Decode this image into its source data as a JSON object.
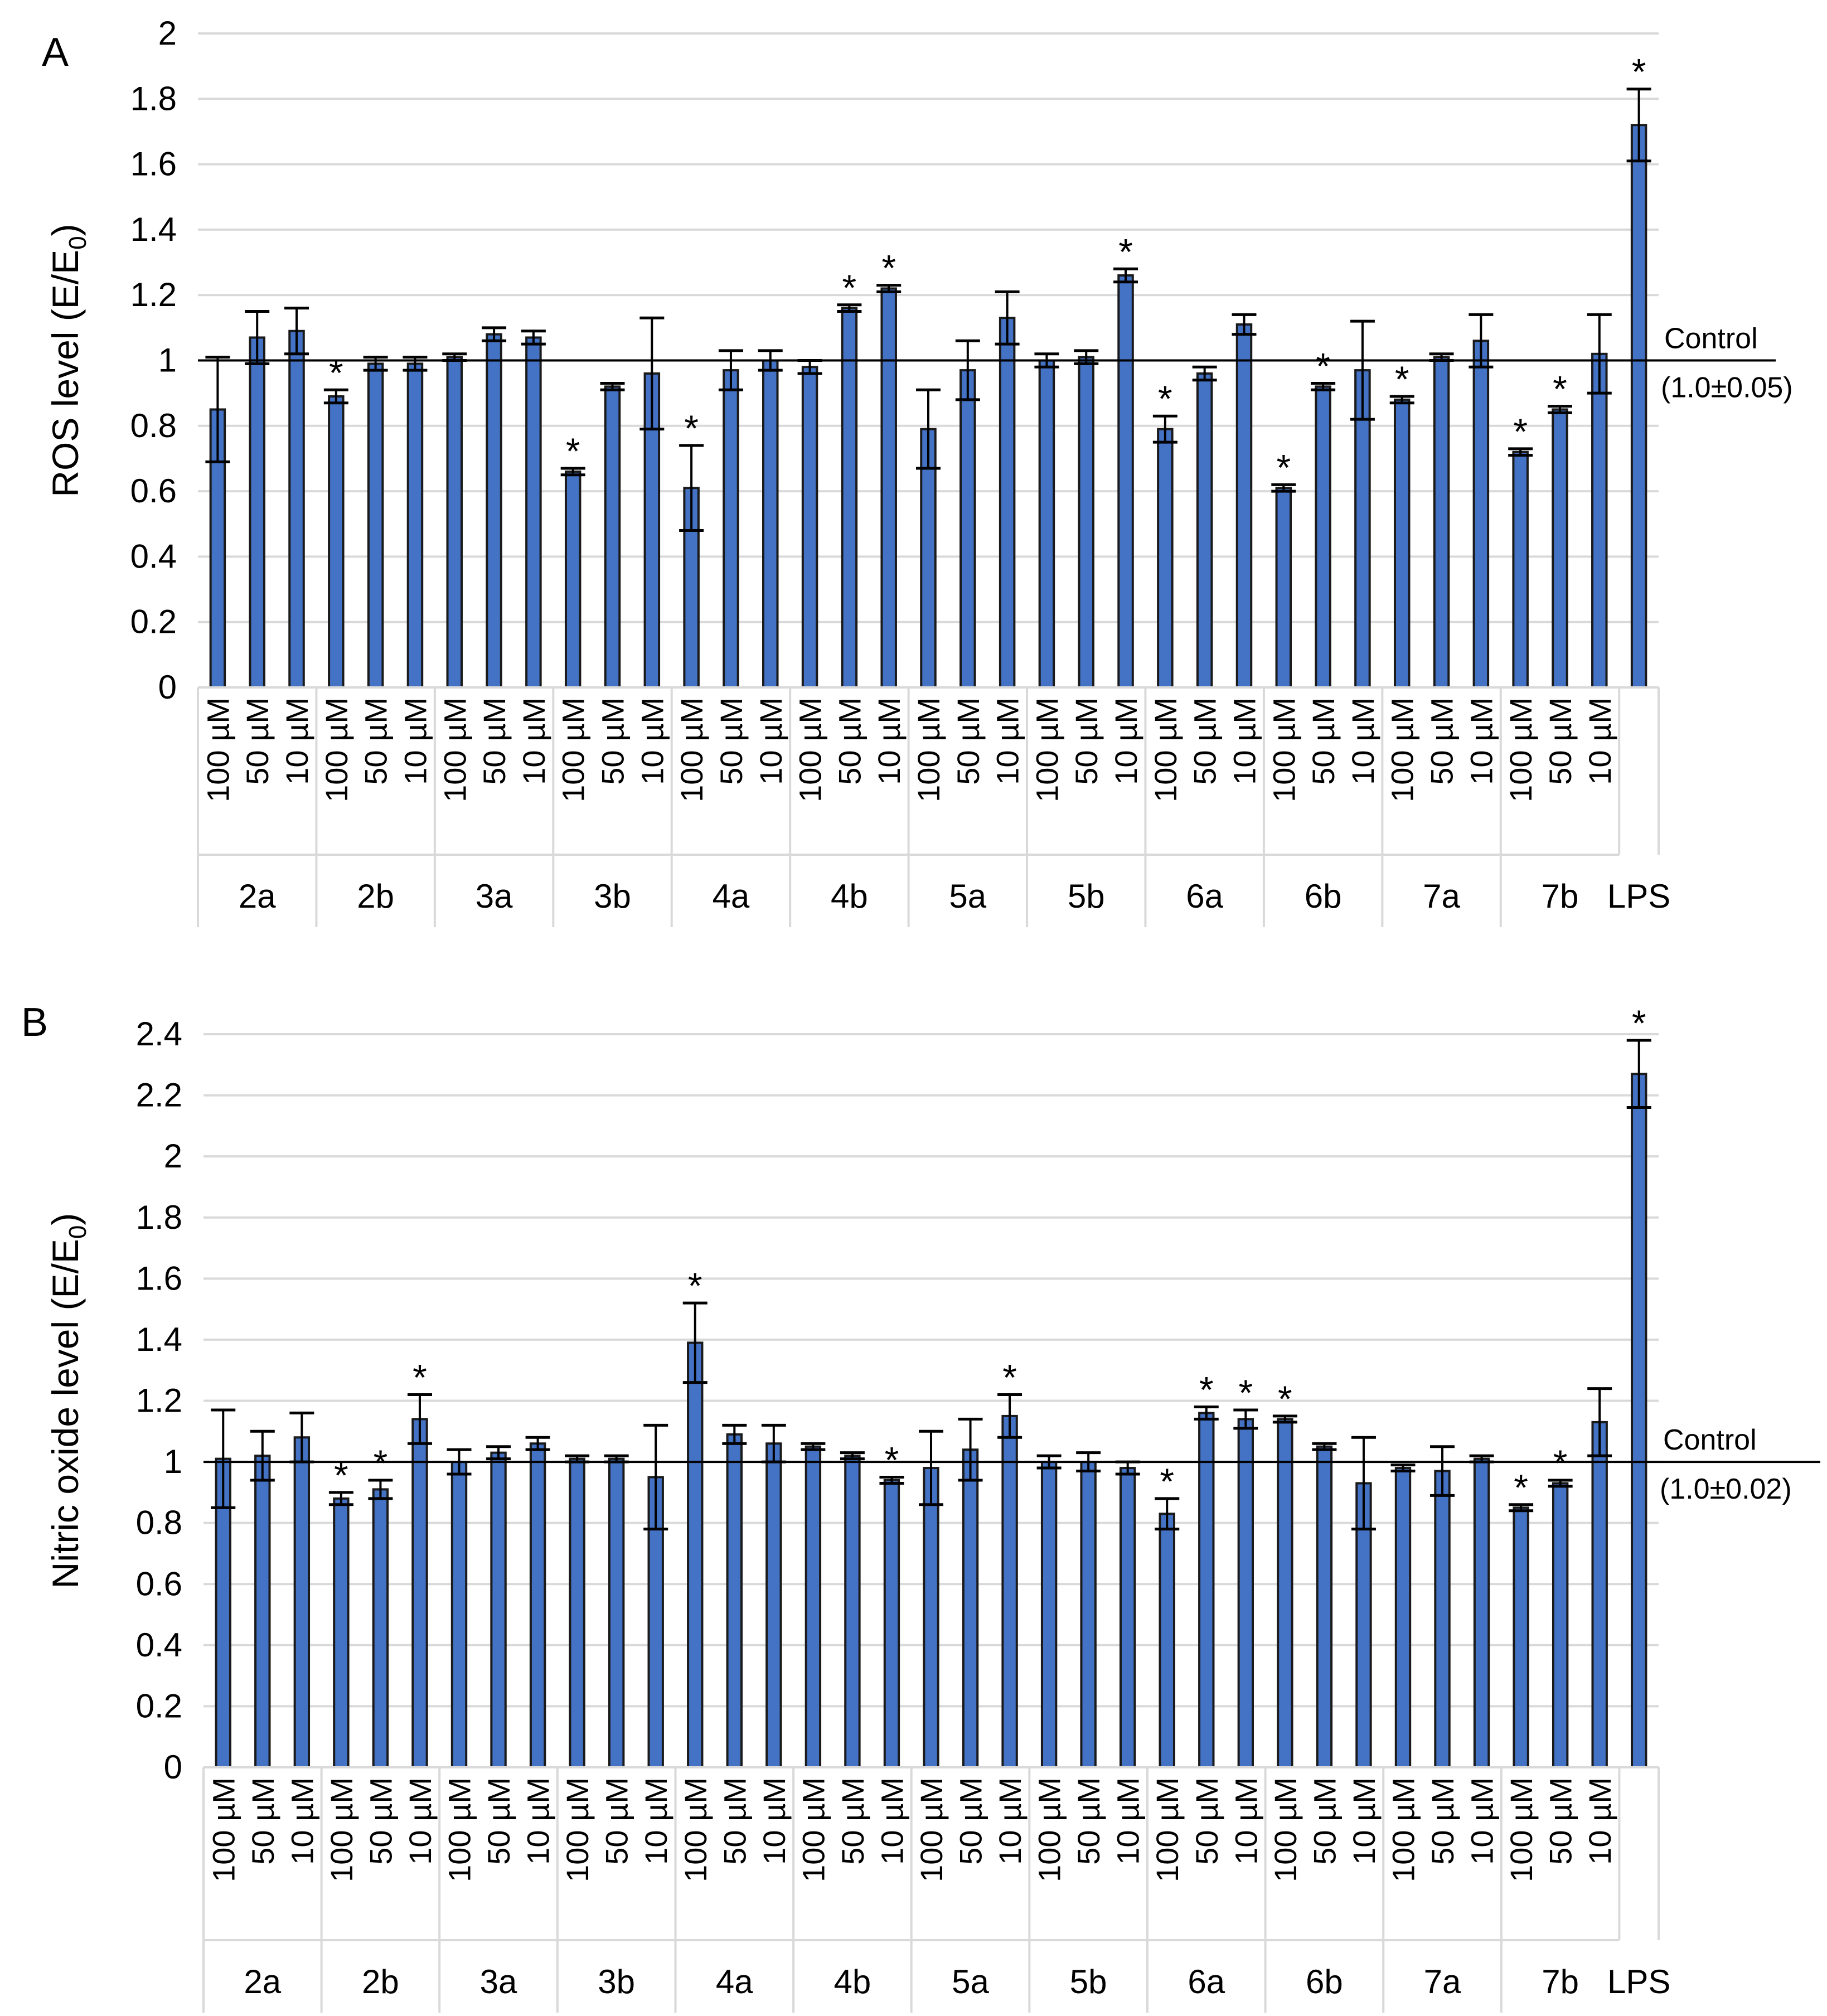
{
  "chart_data": [
    {
      "type": "bar",
      "panel_label": "A",
      "ylabel": "ROS level (E/E",
      "ylabel_sub": "0",
      "ylabel_end": ")",
      "ylim": [
        0,
        2
      ],
      "yticks": [
        0,
        0.2,
        0.4,
        0.6,
        0.8,
        1,
        1.2,
        1.4,
        1.6,
        1.8,
        2
      ],
      "ytick_labels": [
        "0",
        "0.2",
        "0.4",
        "0.6",
        "0.8",
        "1",
        "1.2",
        "1.4",
        "1.6",
        "1.8",
        "2"
      ],
      "groups": [
        "2a",
        "2b",
        "3a",
        "3b",
        "4a",
        "4b",
        "5a",
        "5b",
        "6a",
        "6b",
        "7a",
        "7b",
        "LPS"
      ],
      "concentrations": [
        "100 µM",
        "50 µM",
        "10 µM"
      ],
      "values": [
        0.85,
        1.07,
        1.09,
        0.89,
        0.99,
        0.99,
        1.01,
        1.08,
        1.07,
        0.66,
        0.92,
        0.96,
        0.61,
        0.97,
        1.0,
        0.98,
        1.16,
        1.22,
        0.79,
        0.97,
        1.13,
        1.0,
        1.01,
        1.26,
        0.79,
        0.96,
        1.11,
        0.61,
        0.92,
        0.97,
        0.88,
        1.01,
        1.06,
        0.72,
        0.85,
        1.02,
        1.72
      ],
      "errors": [
        0.16,
        0.08,
        0.07,
        0.02,
        0.02,
        0.02,
        0.01,
        0.02,
        0.02,
        0.01,
        0.01,
        0.17,
        0.13,
        0.06,
        0.03,
        0.02,
        0.01,
        0.01,
        0.12,
        0.09,
        0.08,
        0.02,
        0.02,
        0.02,
        0.04,
        0.02,
        0.03,
        0.01,
        0.01,
        0.15,
        0.01,
        0.01,
        0.08,
        0.01,
        0.01,
        0.12,
        0.11
      ],
      "significant": [
        false,
        false,
        false,
        true,
        false,
        false,
        false,
        false,
        false,
        true,
        false,
        false,
        true,
        false,
        false,
        false,
        true,
        true,
        false,
        false,
        false,
        false,
        false,
        true,
        true,
        false,
        false,
        true,
        true,
        false,
        true,
        false,
        false,
        true,
        true,
        false,
        true
      ],
      "significance_marker": "*",
      "control_line": {
        "value": 1.0,
        "label": "Control",
        "sublabel": "(1.0±0.05)"
      },
      "grid": true,
      "bar_color": "#4472c4"
    },
    {
      "type": "bar",
      "panel_label": "B",
      "ylabel": "Nitric oxide level (E/E",
      "ylabel_sub": "0",
      "ylabel_end": ")",
      "ylim": [
        0,
        2.4
      ],
      "yticks": [
        0,
        0.2,
        0.4,
        0.6,
        0.8,
        1,
        1.2,
        1.4,
        1.6,
        1.8,
        2,
        2.2,
        2.4
      ],
      "ytick_labels": [
        "0",
        "0.2",
        "0.4",
        "0.6",
        "0.8",
        "1",
        "1.2",
        "1.4",
        "1.6",
        "1.8",
        "2",
        "2.2",
        "2.4"
      ],
      "groups": [
        "2a",
        "2b",
        "3a",
        "3b",
        "4a",
        "4b",
        "5a",
        "5b",
        "6a",
        "6b",
        "7a",
        "7b",
        "LPS"
      ],
      "concentrations": [
        "100 µM",
        "50 µM",
        "10 µM"
      ],
      "values": [
        1.01,
        1.02,
        1.08,
        0.88,
        0.91,
        1.14,
        1.0,
        1.03,
        1.06,
        1.01,
        1.01,
        0.95,
        1.39,
        1.09,
        1.06,
        1.05,
        1.02,
        0.94,
        0.98,
        1.04,
        1.15,
        1.0,
        1.0,
        0.98,
        0.83,
        1.16,
        1.14,
        1.14,
        1.05,
        0.93,
        0.98,
        0.97,
        1.01,
        0.85,
        0.93,
        1.13,
        2.27
      ],
      "errors": [
        0.16,
        0.08,
        0.08,
        0.02,
        0.03,
        0.08,
        0.04,
        0.02,
        0.02,
        0.01,
        0.01,
        0.17,
        0.13,
        0.03,
        0.06,
        0.01,
        0.01,
        0.01,
        0.12,
        0.1,
        0.07,
        0.02,
        0.03,
        0.02,
        0.05,
        0.02,
        0.03,
        0.01,
        0.01,
        0.15,
        0.01,
        0.08,
        0.01,
        0.01,
        0.01,
        0.11,
        0.11
      ],
      "significant": [
        false,
        false,
        false,
        true,
        true,
        true,
        false,
        false,
        false,
        false,
        false,
        false,
        true,
        false,
        false,
        false,
        false,
        true,
        false,
        false,
        true,
        false,
        false,
        false,
        true,
        true,
        true,
        true,
        false,
        false,
        false,
        false,
        false,
        true,
        true,
        false,
        true
      ],
      "significance_marker": "*",
      "control_line": {
        "value": 1.0,
        "label": "Control",
        "sublabel": "(1.0±0.02)"
      },
      "grid": true,
      "bar_color": "#4472c4"
    }
  ]
}
